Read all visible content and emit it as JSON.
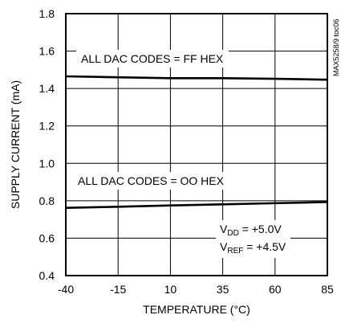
{
  "chart_data": {
    "type": "line",
    "xlabel": "TEMPERATURE (°C)",
    "ylabel": "SUPPLY CURRENT (mA)",
    "xlim": [
      -40,
      85
    ],
    "ylim": [
      0.4,
      1.8
    ],
    "x_ticks": [
      "-40",
      "-15",
      "10",
      "35",
      "60",
      "85"
    ],
    "y_ticks": [
      "0.4",
      "0.6",
      "0.8",
      "1.0",
      "1.2",
      "1.4",
      "1.6",
      "1.8"
    ],
    "grid": true,
    "series": [
      {
        "name": "ALL DAC CODES = FF HEX",
        "x": [
          -40,
          -15,
          10,
          35,
          60,
          85
        ],
        "y": [
          1.465,
          1.46,
          1.455,
          1.455,
          1.452,
          1.447
        ]
      },
      {
        "name": "ALL DAC CODES = OO HEX",
        "x": [
          -40,
          -15,
          10,
          35,
          60,
          85
        ],
        "y": [
          0.762,
          0.768,
          0.775,
          0.781,
          0.787,
          0.793
        ]
      }
    ],
    "annotations": {
      "vdd": {
        "main": "V",
        "sub": "DD",
        "rest": " = +5.0V"
      },
      "vref": {
        "main": "V",
        "sub": "REF",
        "rest": " = +4.5V"
      },
      "code": "MAX5258/9 toc06"
    }
  }
}
